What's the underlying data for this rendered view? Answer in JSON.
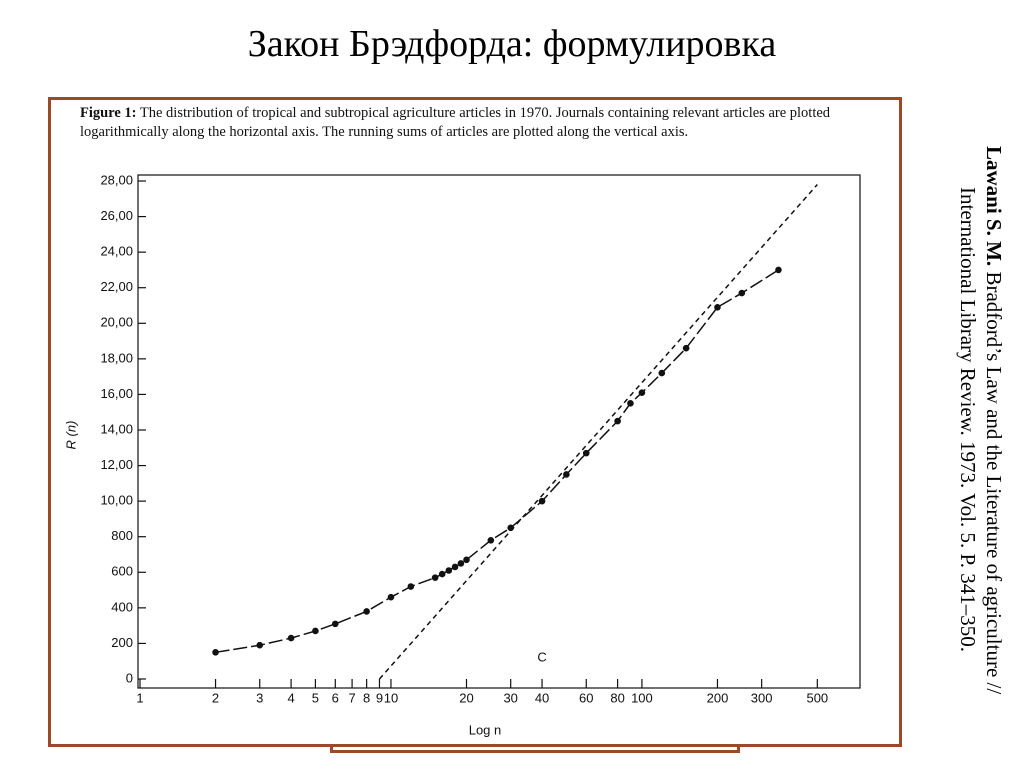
{
  "slide_title": "Закон Брэдфорда: формулировка",
  "citation": {
    "author": "Lawani S. M.",
    "text": "Bradford’s Law and the Literature of agriculture // International Library Review. 1973. Vol. 5. P. 341–350."
  },
  "chart_data": {
    "type": "line",
    "caption_label": "Figure 1:",
    "caption": "The distribution of tropical and subtropical agriculture articles in 1970. Journals containing relevant articles are plotted logarithmically along the horizontal axis. The running sums of articles are plotted along the vertical axis.",
    "x_label": "Log n",
    "y_label": "R (n)",
    "annotation": "C",
    "log_x": true,
    "xlim": [
      1,
      700
    ],
    "ylim": [
      0,
      2800
    ],
    "xticks": [
      1,
      2,
      3,
      4,
      5,
      6,
      7,
      8,
      9,
      10,
      20,
      30,
      40,
      60,
      80,
      100,
      200,
      300,
      500
    ],
    "yticks": [
      0,
      200,
      400,
      600,
      800,
      {
        "value": 1000,
        "label": "10,00"
      },
      {
        "value": 1200,
        "label": "12,00"
      },
      {
        "value": 1400,
        "label": "14,00"
      },
      {
        "value": 1600,
        "label": "16,00"
      },
      {
        "value": 1800,
        "label": "18,00"
      },
      {
        "value": 2000,
        "label": "20,00"
      },
      {
        "value": 2200,
        "label": "22,00"
      },
      {
        "value": 2400,
        "label": "24,00"
      },
      {
        "value": 2600,
        "label": "26,00"
      },
      {
        "value": 2800,
        "label": "28,00"
      }
    ],
    "series": [
      {
        "name": "R(n)",
        "color": "#111",
        "x": [
          2,
          3,
          4,
          5,
          6,
          8,
          10,
          12,
          15,
          16,
          17,
          18,
          19,
          20,
          25,
          30,
          40,
          50,
          60,
          80,
          90,
          100,
          120,
          150,
          200,
          250,
          350
        ],
        "values": [
          150,
          190,
          230,
          270,
          310,
          380,
          460,
          520,
          570,
          590,
          610,
          630,
          650,
          670,
          780,
          850,
          1000,
          1150,
          1270,
          1450,
          1550,
          1610,
          1720,
          1860,
          2090,
          2170,
          2300
        ]
      },
      {
        "name": "Bradford line",
        "color": "#111",
        "dashed": true,
        "x": [
          9,
          500
        ],
        "values": [
          0,
          2780
        ]
      }
    ]
  }
}
